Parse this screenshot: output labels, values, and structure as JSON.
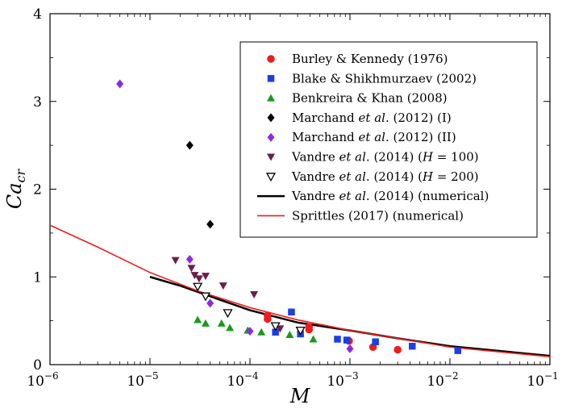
{
  "chart_data": {
    "type": "scatter",
    "x_scale": "log",
    "xlim": [
      1e-06,
      0.1
    ],
    "ylim": [
      0,
      4
    ],
    "xlabel": "M",
    "ylabel": "Ca_cr",
    "grid": false,
    "legend_position": "top-right",
    "x_ticks": [
      {
        "label": "10−6",
        "mantissa": "10",
        "exp": "−6",
        "value": 1e-06
      },
      {
        "label": "10−5",
        "mantissa": "10",
        "exp": "−5",
        "value": 1e-05
      },
      {
        "label": "10−4",
        "mantissa": "10",
        "exp": "−4",
        "value": 0.0001
      },
      {
        "label": "10−3",
        "mantissa": "10",
        "exp": "−3",
        "value": 0.001
      },
      {
        "label": "10−2",
        "mantissa": "10",
        "exp": "−2",
        "value": 0.01
      },
      {
        "label": "10−1",
        "mantissa": "10",
        "exp": "−1",
        "value": 0.1
      }
    ],
    "y_ticks": [
      {
        "label": "0",
        "value": 0
      },
      {
        "label": "1",
        "value": 1
      },
      {
        "label": "2",
        "value": 2
      },
      {
        "label": "3",
        "value": 3
      },
      {
        "label": "4",
        "value": 4
      }
    ],
    "series": [
      {
        "name": "Burley & Kennedy (1976)",
        "label_parts": [
          [
            "Burley & Kennedy (1976)",
            "n"
          ]
        ],
        "marker": "circle",
        "color": "#ee1c1c",
        "points": [
          [
            0.00015,
            0.56
          ],
          [
            0.00015,
            0.52
          ],
          [
            0.00039,
            0.43
          ],
          [
            0.00039,
            0.4
          ],
          [
            0.00098,
            0.27
          ],
          [
            0.0017,
            0.2
          ],
          [
            0.003,
            0.17
          ]
        ]
      },
      {
        "name": "Blake & Shikhmurzaev (2002)",
        "label_parts": [
          [
            "Blake & Shikhmurzaev (2002)",
            "n"
          ]
        ],
        "marker": "square",
        "color": "#1b3ee8",
        "points": [
          [
            0.00018,
            0.37
          ],
          [
            0.00026,
            0.6
          ],
          [
            0.00032,
            0.35
          ],
          [
            0.00075,
            0.29
          ],
          [
            0.00093,
            0.28
          ],
          [
            0.0018,
            0.26
          ],
          [
            0.0042,
            0.21
          ],
          [
            0.012,
            0.16
          ]
        ]
      },
      {
        "name": "Benkreira & Khan (2008)",
        "label_parts": [
          [
            "Benkreira & Khan (2008)",
            "n"
          ]
        ],
        "marker": "triangle-up",
        "color": "#1a9a1a",
        "points": [
          [
            3e-05,
            0.51
          ],
          [
            3.6e-05,
            0.47
          ],
          [
            5.2e-05,
            0.47
          ],
          [
            6.3e-05,
            0.42
          ],
          [
            9.5e-05,
            0.39
          ],
          [
            0.00013,
            0.37
          ],
          [
            0.00025,
            0.34
          ],
          [
            0.00043,
            0.29
          ]
        ]
      },
      {
        "name": "Marchand et al. (2012) (I)",
        "label_parts": [
          [
            "Marchand ",
            "n"
          ],
          [
            "et al",
            "i"
          ],
          [
            ". (2012) (I)",
            "n"
          ]
        ],
        "marker": "diamond",
        "color": "#000000",
        "points": [
          [
            2.5e-05,
            2.5
          ],
          [
            4e-05,
            1.6
          ]
        ]
      },
      {
        "name": "Marchand et al. (2012) (II)",
        "label_parts": [
          [
            "Marchand ",
            "n"
          ],
          [
            "et al",
            "i"
          ],
          [
            ". (2012) (II)",
            "n"
          ]
        ],
        "marker": "diamond",
        "color": "#8a2be2",
        "points": [
          [
            5e-06,
            3.2
          ],
          [
            2.5e-05,
            1.2
          ],
          [
            4e-05,
            0.7
          ],
          [
            0.0001,
            0.38
          ],
          [
            0.001,
            0.18
          ]
        ]
      },
      {
        "name": "Vandre et al. (2014) (H = 100)",
        "label_parts": [
          [
            "Vandre ",
            "n"
          ],
          [
            "et al",
            "i"
          ],
          [
            ". (2014) (",
            "n"
          ],
          [
            "H",
            "i"
          ],
          [
            " = 100)",
            "n"
          ]
        ],
        "marker": "triangle-down",
        "color": "#6a1f4a",
        "points": [
          [
            1.8e-05,
            1.19
          ],
          [
            2.6e-05,
            1.1
          ],
          [
            2.8e-05,
            1.02
          ],
          [
            3.1e-05,
            0.98
          ],
          [
            3.6e-05,
            1.01
          ],
          [
            5.4e-05,
            0.9
          ],
          [
            0.00011,
            0.8
          ],
          [
            0.0002,
            0.41
          ]
        ]
      },
      {
        "name": "Vandre et al. (2014) (H = 200)",
        "label_parts": [
          [
            "Vandre ",
            "n"
          ],
          [
            "et al",
            "i"
          ],
          [
            ". (2014) (",
            "n"
          ],
          [
            "H",
            "i"
          ],
          [
            " = 200)",
            "n"
          ]
        ],
        "marker": "triangle-down-open",
        "color": "#000000",
        "points": [
          [
            3e-05,
            0.89
          ],
          [
            3.6e-05,
            0.78
          ],
          [
            6e-05,
            0.59
          ],
          [
            0.00018,
            0.44
          ],
          [
            0.00032,
            0.39
          ]
        ]
      },
      {
        "name": "Vandre et al. (2014) (numerical)",
        "label_parts": [
          [
            "Vandre ",
            "n"
          ],
          [
            "et al",
            "i"
          ],
          [
            ". (2014) (numerical)",
            "n"
          ]
        ],
        "marker": "line",
        "color": "#000000",
        "stroke_width": 2.5,
        "points": [
          [
            1e-05,
            1.0
          ],
          [
            2e-05,
            0.9
          ],
          [
            5e-05,
            0.74
          ],
          [
            0.0001,
            0.62
          ],
          [
            0.0003,
            0.48
          ],
          [
            0.001,
            0.39
          ],
          [
            0.003,
            0.3
          ],
          [
            0.01,
            0.21
          ],
          [
            0.1,
            0.1
          ]
        ]
      },
      {
        "name": "Sprittles (2017) (numerical)",
        "label_parts": [
          [
            "Sprittles (2017) (numerical)",
            "n"
          ]
        ],
        "marker": "line",
        "color": "#ee1c1c",
        "stroke_width": 1.6,
        "points": [
          [
            1e-06,
            1.59
          ],
          [
            3e-06,
            1.34
          ],
          [
            1e-05,
            1.05
          ],
          [
            3e-05,
            0.84
          ],
          [
            0.0001,
            0.65
          ],
          [
            0.0003,
            0.51
          ],
          [
            0.001,
            0.39
          ],
          [
            0.003,
            0.3
          ],
          [
            0.01,
            0.2
          ],
          [
            0.1,
            0.09
          ]
        ]
      }
    ]
  }
}
